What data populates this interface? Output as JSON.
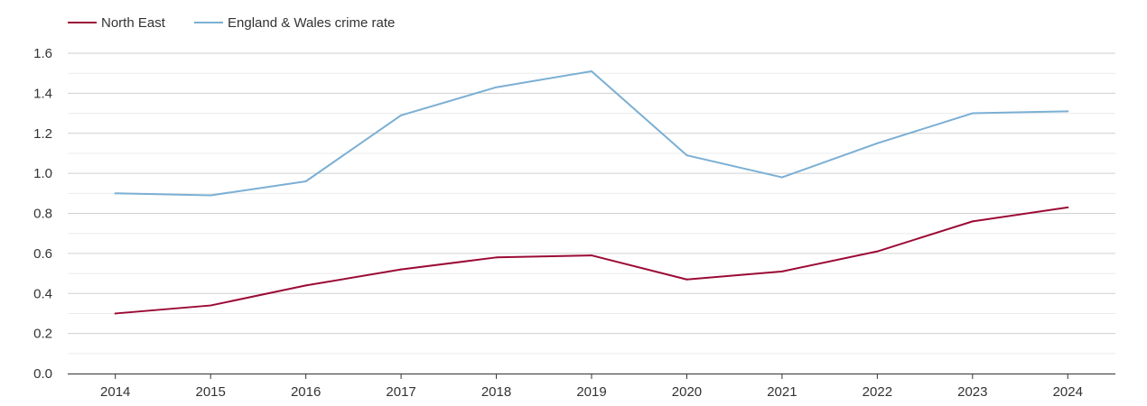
{
  "chart_data": {
    "type": "line",
    "title": "",
    "xlabel": "",
    "ylabel": "",
    "categories": [
      "2014",
      "2015",
      "2016",
      "2017",
      "2018",
      "2019",
      "2020",
      "2021",
      "2022",
      "2023",
      "2024"
    ],
    "ylim": [
      0,
      1.6
    ],
    "yticks": [
      "0.0",
      "0.2",
      "0.4",
      "0.6",
      "0.8",
      "1.0",
      "1.2",
      "1.4",
      "1.6"
    ],
    "grid": true,
    "legend_position": "top-left",
    "series": [
      {
        "name": "North East",
        "color": "#9b0a35",
        "values": [
          0.3,
          0.34,
          0.44,
          0.52,
          0.58,
          0.59,
          0.47,
          0.51,
          0.61,
          0.76,
          0.83
        ]
      },
      {
        "name": "England & Wales crime rate",
        "color": "#7bafd4",
        "values": [
          0.9,
          0.89,
          0.96,
          1.29,
          1.43,
          1.51,
          1.09,
          0.98,
          1.15,
          1.3,
          1.31
        ]
      }
    ]
  }
}
